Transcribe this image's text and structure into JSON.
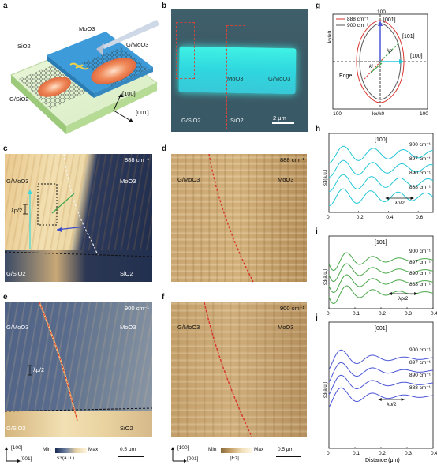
{
  "panels": {
    "a": {
      "label": "a",
      "labels": {
        "moo3": "MoO3",
        "sio2": "SiO2",
        "g_moo3": "G/MoO3",
        "g_sio2": "G/SiO2",
        "dir100": "[100]",
        "dir001": "[001]"
      }
    },
    "b": {
      "label": "b",
      "labels": {
        "moo3": "MoO3",
        "g_moo3": "G/MoO3",
        "g_sio2": "G/SiO2",
        "sio2": "SiO2",
        "scale": "2 μm"
      }
    },
    "c": {
      "label": "c",
      "labels": {
        "freq": "888 cm⁻¹",
        "g_moo3": "G/MoO3",
        "moo3": "MoO3",
        "lambda": "λp/2",
        "g_sio2": "G/SiO2",
        "sio2": "SiO2"
      }
    },
    "d": {
      "label": "d",
      "labels": {
        "freq": "888 cm⁻¹",
        "g_moo3": "G/MoO3",
        "moo3": "MoO3"
      }
    },
    "e": {
      "label": "e",
      "labels": {
        "freq": "900 cm⁻¹",
        "g_moo3": "G/MoO3",
        "moo3": "MoO3",
        "lambda": "λp/2",
        "g_sio2": "G/SiO2",
        "sio2": "SiO2"
      }
    },
    "f": {
      "label": "f",
      "labels": {
        "freq": "900 cm⁻¹",
        "g_moo3": "G/MoO3",
        "moo3": "MoO3"
      }
    },
    "g": {
      "label": "g"
    },
    "h": {
      "label": "h"
    },
    "i": {
      "label": "i"
    },
    "j": {
      "label": "j"
    }
  },
  "colorbars": {
    "e": {
      "min": "Min",
      "max": "Max",
      "quantity": "s3(a.u.)",
      "scale": "0.5 μm",
      "dir100": "[100]",
      "dir001": "[001]"
    },
    "f": {
      "min": "Min",
      "max": "Max",
      "quantity": "|Ez|",
      "scale": "0.5 μm",
      "dir100": "[100]",
      "dir001": "[001]"
    }
  },
  "colors": {
    "cyan": "#22c6d8",
    "green": "#4aa84a",
    "blue": "#4a55d6",
    "red_curve": "#d8332c",
    "gray_curve": "#555555"
  },
  "chart_data": [
    {
      "type": "line",
      "panel": "g",
      "title": "",
      "xlabel": "kx/k0",
      "ylabel": "ky/k0",
      "xlim": [
        -100,
        100
      ],
      "ylim": [
        -100,
        100
      ],
      "tick_labels": {
        "x_min": "-100",
        "x_max": "100",
        "y_max": "100"
      },
      "series": [
        {
          "name": "888 cm⁻¹",
          "color": "#d8332c"
        },
        {
          "name": "900 cm⁻¹",
          "color": "#555555"
        }
      ],
      "annotations": [
        "[001]",
        "[101]",
        "[100]",
        "kp",
        "ki",
        "Edge"
      ]
    },
    {
      "type": "line",
      "panel": "h",
      "title": "[100]",
      "ylabel": "s3(a.u.)",
      "xlim": [
        0,
        0.7
      ],
      "x_ticks": [
        "0",
        "0.2",
        "0.4",
        "0.6"
      ],
      "color": "#22c6d8",
      "annotation": "λp/2",
      "series": [
        {
          "name": "900 cm⁻¹",
          "wavelength": 0.2,
          "amplitude": 1.0
        },
        {
          "name": "897 cm⁻¹",
          "wavelength": 0.196,
          "amplitude": 1.0
        },
        {
          "name": "890 cm⁻¹",
          "wavelength": 0.19,
          "amplitude": 1.0
        },
        {
          "name": "888 cm⁻¹",
          "wavelength": 0.185,
          "amplitude": 1.0
        }
      ]
    },
    {
      "type": "line",
      "panel": "i",
      "title": "[101]",
      "ylabel": "s3(a.u.)",
      "xlim": [
        0,
        0.4
      ],
      "x_ticks": [
        "0",
        "0.1",
        "0.2",
        "0.3",
        "0.4"
      ],
      "color": "#4aa84a",
      "annotation": "λp/2",
      "series": [
        {
          "name": "900 cm⁻¹",
          "wavelength": 0.1,
          "amplitude": 1.0
        },
        {
          "name": "897 cm⁻¹",
          "wavelength": 0.1,
          "amplitude": 1.0
        },
        {
          "name": "890 cm⁻¹",
          "wavelength": 0.1,
          "amplitude": 1.0
        },
        {
          "name": "888 cm⁻¹",
          "wavelength": 0.1,
          "amplitude": 1.0
        }
      ]
    },
    {
      "type": "line",
      "panel": "j",
      "title": "[001]",
      "ylabel": "s3(a.u.)",
      "xlabel": "Distance (μm)",
      "xlim": [
        0,
        0.4
      ],
      "x_ticks": [
        "0",
        "0.1",
        "0.2",
        "0.3",
        "0.4"
      ],
      "color": "#4a55d6",
      "annotation": "λp/2",
      "series": [
        {
          "name": "900 cm⁻¹",
          "wavelength": 0.12,
          "amplitude": 1.0
        },
        {
          "name": "897 cm⁻¹",
          "wavelength": 0.12,
          "amplitude": 1.0
        },
        {
          "name": "890 cm⁻¹",
          "wavelength": 0.12,
          "amplitude": 1.0
        },
        {
          "name": "888 cm⁻¹",
          "wavelength": 0.12,
          "amplitude": 1.0
        }
      ]
    }
  ]
}
